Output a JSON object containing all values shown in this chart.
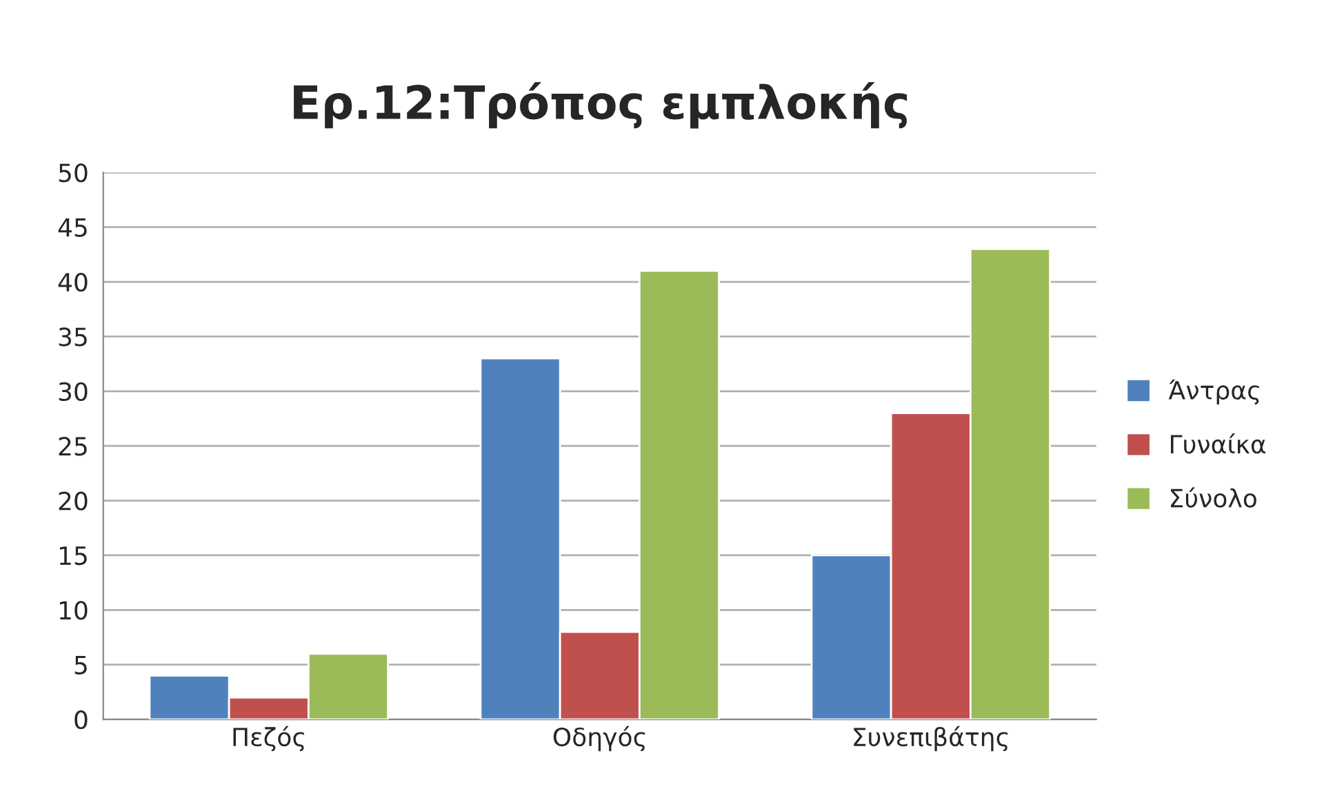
{
  "chart_data": {
    "type": "bar",
    "title": "Ερ.12:Τρόπος εμπλοκής",
    "categories": [
      "Πεζός",
      "Οδηγός",
      "Συνεπιβάτης"
    ],
    "series": [
      {
        "name": "Άντρας",
        "color": "#4f81bd",
        "values": [
          4,
          33,
          15
        ]
      },
      {
        "name": "Γυναίκα",
        "color": "#c0504d",
        "values": [
          2,
          8,
          28
        ]
      },
      {
        "name": "Σύνολο",
        "color": "#9bbb59",
        "values": [
          6,
          41,
          43
        ]
      }
    ],
    "ylim": [
      0,
      50
    ],
    "yticks": [
      0,
      5,
      10,
      15,
      20,
      25,
      30,
      35,
      40,
      45,
      50
    ],
    "grid": "y",
    "legend": "right"
  }
}
